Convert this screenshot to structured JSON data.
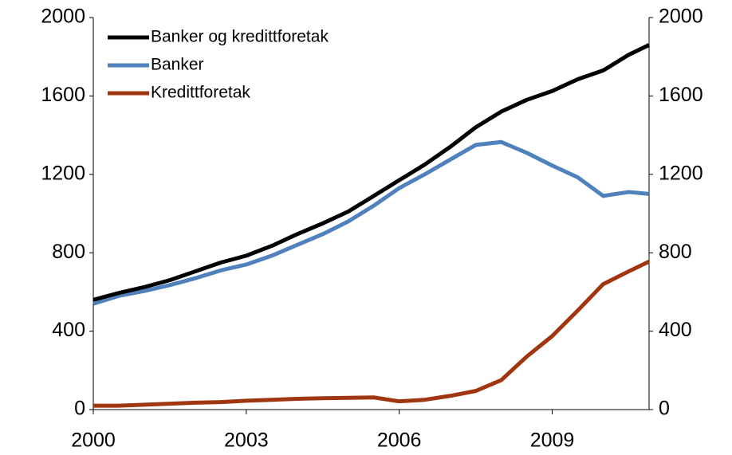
{
  "chart_data": {
    "type": "line",
    "x": [
      2000,
      2000.5,
      2001,
      2001.5,
      2002,
      2002.5,
      2003,
      2003.5,
      2004,
      2004.5,
      2005,
      2005.5,
      2006,
      2006.5,
      2007,
      2007.5,
      2008,
      2008.5,
      2009,
      2009.5,
      2010,
      2010.5,
      2010.9
    ],
    "series": [
      {
        "name": "Banker og kredittforetak",
        "color": "#000000",
        "values": [
          560,
          595,
          625,
          660,
          705,
          750,
          785,
          835,
          895,
          950,
          1010,
          1090,
          1170,
          1250,
          1340,
          1440,
          1520,
          1580,
          1625,
          1685,
          1730,
          1810,
          1860
        ]
      },
      {
        "name": "Banker",
        "color": "#4f81bd",
        "values": [
          540,
          580,
          605,
          635,
          670,
          710,
          740,
          785,
          840,
          895,
          960,
          1040,
          1130,
          1200,
          1275,
          1350,
          1365,
          1310,
          1245,
          1185,
          1090,
          1110,
          1100
        ]
      },
      {
        "name": "Kredittforetak",
        "color": "#a0360f",
        "values": [
          20,
          20,
          25,
          30,
          35,
          38,
          45,
          50,
          55,
          58,
          60,
          62,
          42,
          50,
          70,
          95,
          150,
          270,
          375,
          505,
          640,
          705,
          755
        ]
      }
    ],
    "xlim": [
      2000,
      2010.9
    ],
    "xticks": [
      2000,
      2003,
      2006,
      2009
    ],
    "ylim": [
      0,
      2000
    ],
    "yticks": [
      0,
      400,
      800,
      1200,
      1600,
      2000
    ],
    "y2lim": [
      0,
      2000
    ],
    "y2ticks": [
      0,
      400,
      800,
      1200,
      1600,
      2000
    ],
    "legend": "upper left"
  }
}
